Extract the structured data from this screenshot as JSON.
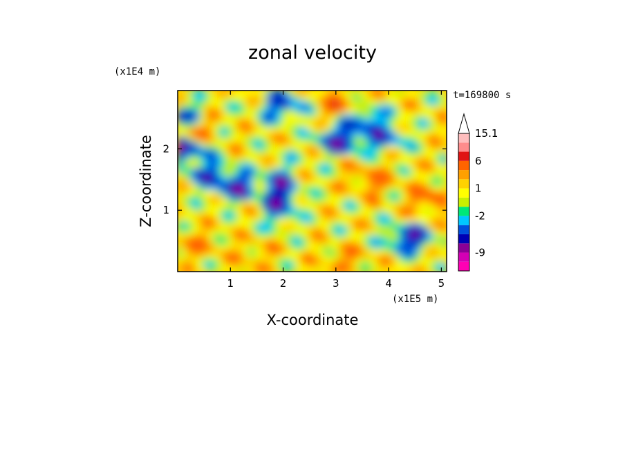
{
  "chart_data": {
    "type": "heatmap",
    "title": "zonal velocity",
    "xlabel": "X-coordinate",
    "ylabel": "Z-coordinate",
    "x_unit": "(x1E5 m)",
    "y_unit": "(x1E4 m)",
    "timestamp": "t=169800 s",
    "xlim": [
      0,
      5.1
    ],
    "ylim": [
      0,
      2.95
    ],
    "x_ticks": [
      1,
      2,
      3,
      4,
      5
    ],
    "y_ticks": [
      1,
      2
    ],
    "x_tick_labels": [
      "1",
      "2",
      "3",
      "4",
      "5"
    ],
    "y_tick_labels": [
      "1",
      "2"
    ],
    "colorbar": {
      "levels": [
        -13,
        -11,
        -9,
        -7,
        -5,
        -3,
        -2,
        -1,
        0,
        1,
        2,
        3,
        6,
        9,
        12,
        15.1
      ],
      "colors": [
        "#ff00b4",
        "#d400b4",
        "#8c0096",
        "#0000b4",
        "#0050dc",
        "#00c8ff",
        "#00e878",
        "#c8f000",
        "#ffff00",
        "#ffd200",
        "#ffa000",
        "#ff6400",
        "#e01414",
        "#ff8c8c",
        "#ffbebe"
      ],
      "tick_labels": [
        {
          "value": 15.1,
          "label": "15.1"
        },
        {
          "value": 6,
          "label": "6"
        },
        {
          "value": 1,
          "label": "1"
        },
        {
          "value": -2,
          "label": "-2"
        },
        {
          "value": -9,
          "label": "-9"
        }
      ],
      "extend": "max"
    },
    "features": [
      {
        "x": 1.95,
        "z": 1.25,
        "value": -10,
        "shape": "elongated",
        "note": "strong negative core near x=2"
      },
      {
        "x": 1.1,
        "z": 1.4,
        "value": -9
      },
      {
        "x": 0.6,
        "z": 1.6,
        "value": -7
      },
      {
        "x": 3.1,
        "z": 2.15,
        "value": -9
      },
      {
        "x": 3.5,
        "z": 2.5,
        "value": -8
      },
      {
        "x": 3.9,
        "z": 2.2,
        "value": -7
      },
      {
        "x": 4.4,
        "z": 0.55,
        "value": -9
      },
      {
        "x": 0.1,
        "z": 2.5,
        "value": -9
      },
      {
        "x": 0.1,
        "z": 2.0,
        "value": -9
      },
      {
        "x": 2.0,
        "z": 2.7,
        "value": -7
      },
      {
        "x": 3.1,
        "z": 2.7,
        "value": 6
      },
      {
        "x": 0.3,
        "z": 2.35,
        "value": 6
      },
      {
        "x": 3.7,
        "z": 1.5,
        "value": 5
      },
      {
        "x": 4.8,
        "z": 1.2,
        "value": 6
      },
      {
        "x": 3.2,
        "z": 0.2,
        "value": 4
      },
      {
        "x": 0.4,
        "z": 0.45,
        "value": 4
      },
      {
        "x": 1.5,
        "z": 0.3,
        "value": 3
      }
    ]
  }
}
